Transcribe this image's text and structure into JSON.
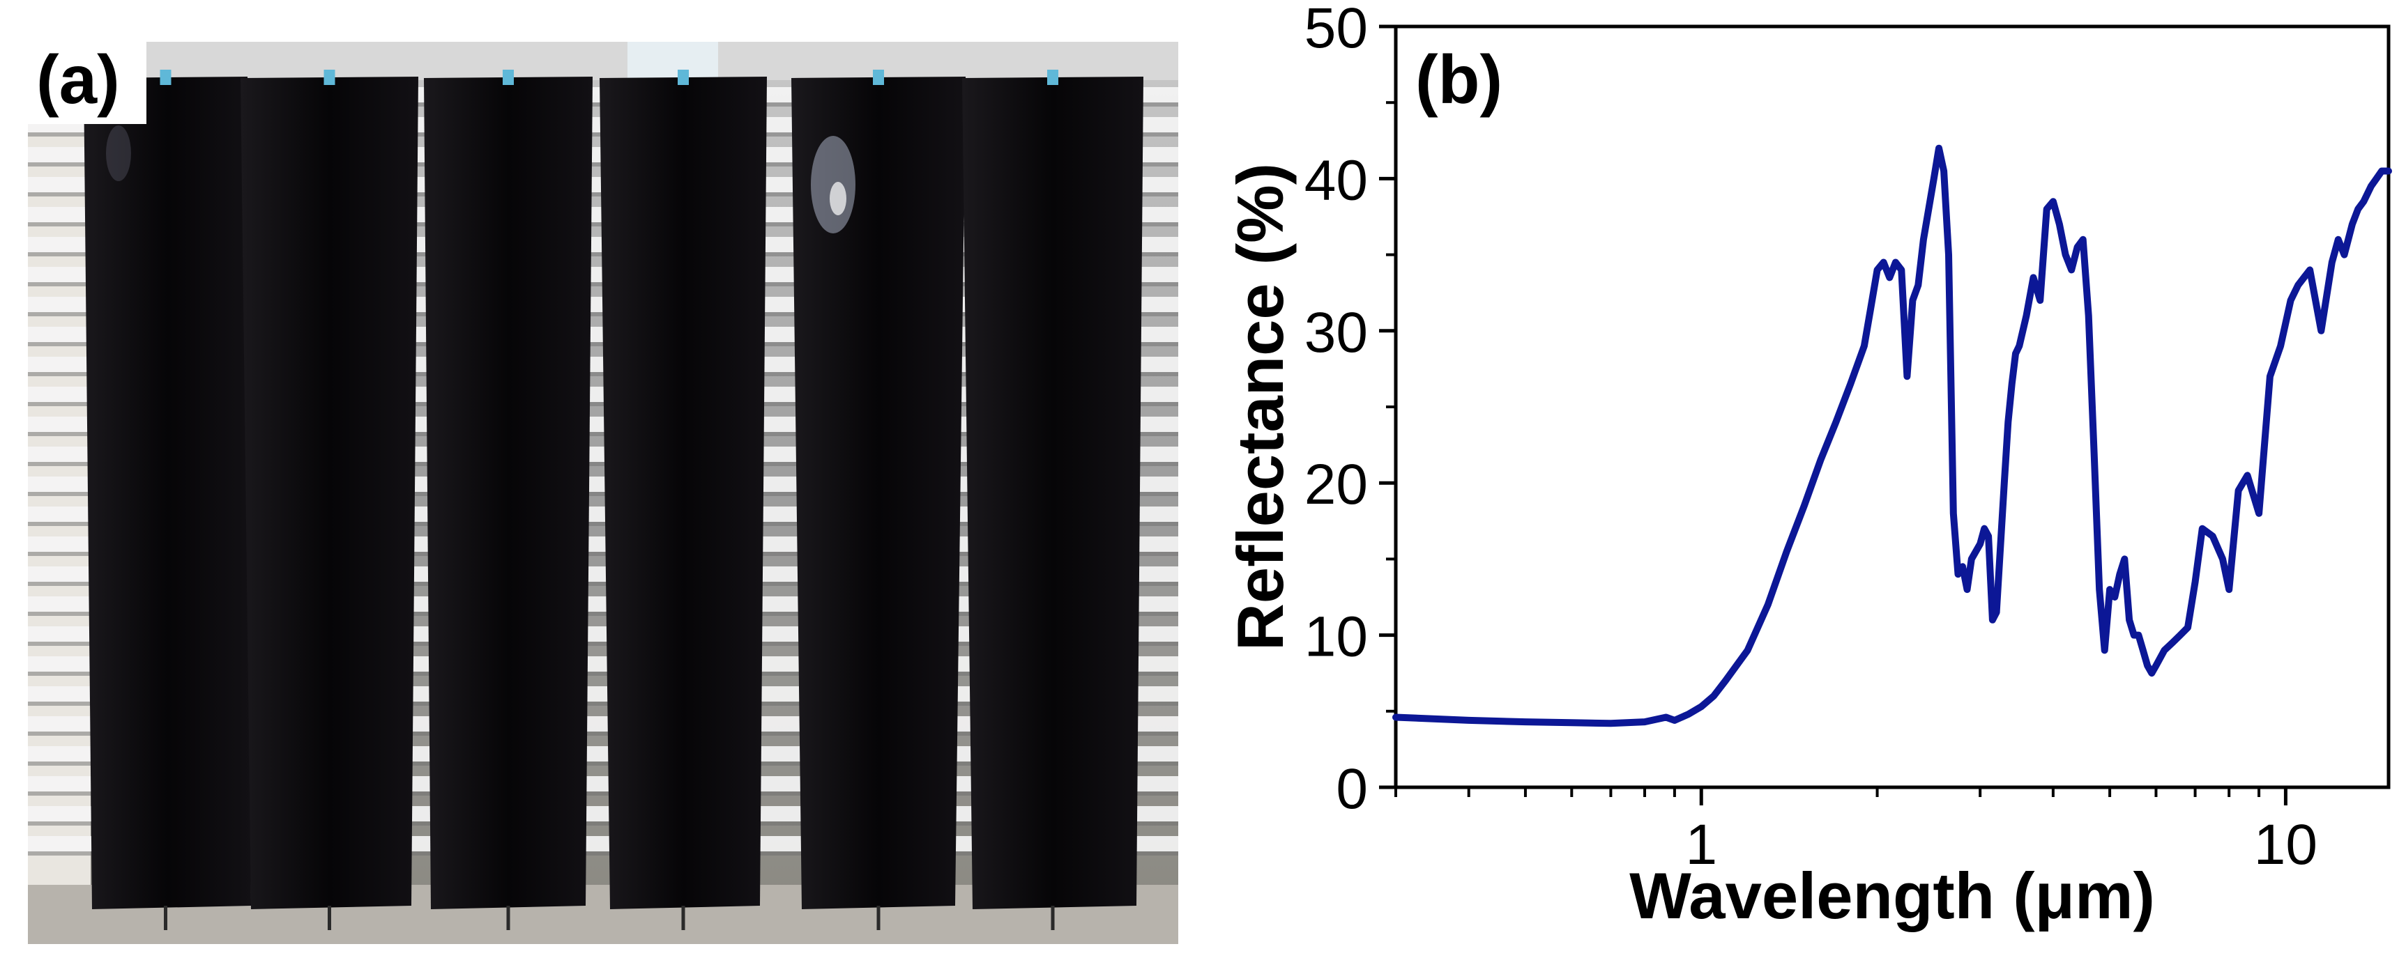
{
  "panel_a": {
    "label": "(a)",
    "colors": {
      "sheet": "#080608",
      "wall": "#9a9a9a",
      "slat_light": "#f4f4f4",
      "clip": "#5fb8d8"
    }
  },
  "panel_b": {
    "label": "(b)"
  },
  "chart_data": {
    "type": "line",
    "title": "",
    "xlabel": "Wavelength (μm)",
    "ylabel": "Reflectance (%)",
    "x_scale": "log",
    "xlim": [
      0.3,
      15
    ],
    "ylim": [
      0,
      50
    ],
    "x_ticks": [
      1,
      10
    ],
    "x_tick_labels": [
      "1",
      "10"
    ],
    "y_ticks": [
      0,
      10,
      20,
      30,
      40,
      50
    ],
    "y_tick_labels": [
      "0",
      "10",
      "20",
      "30",
      "40",
      "50"
    ],
    "grid": false,
    "legend": "none",
    "line_color": "#0c1796",
    "series": [
      {
        "x": [
          0.3,
          0.4,
          0.5,
          0.6,
          0.7,
          0.8,
          0.87,
          0.9,
          0.95,
          1.0,
          1.05,
          1.1,
          1.2,
          1.3,
          1.4,
          1.5,
          1.6,
          1.7,
          1.8,
          1.9,
          1.95,
          2.0,
          2.05,
          2.1,
          2.15,
          2.2,
          2.25,
          2.3,
          2.35,
          2.4,
          2.5,
          2.55,
          2.6,
          2.65,
          2.7,
          2.75,
          2.8,
          2.85,
          2.9,
          3.0,
          3.05,
          3.1,
          3.15,
          3.2,
          3.3,
          3.35,
          3.4,
          3.45,
          3.5,
          3.6,
          3.7,
          3.8,
          3.9,
          4.0,
          4.1,
          4.2,
          4.3,
          4.4,
          4.5,
          4.6,
          4.7,
          4.8,
          4.9,
          5.0,
          5.1,
          5.2,
          5.3,
          5.4,
          5.5,
          5.6,
          5.7,
          5.8,
          5.9,
          6.0,
          6.2,
          6.4,
          6.6,
          6.8,
          7.0,
          7.2,
          7.5,
          7.8,
          8.0,
          8.3,
          8.6,
          9.0,
          9.4,
          9.8,
          10.2,
          10.5,
          11.0,
          11.5,
          12.0,
          12.3,
          12.6,
          13.0,
          13.3,
          13.6,
          14.0,
          14.3,
          14.6,
          15.0
        ],
        "y": [
          4.6,
          4.4,
          4.3,
          4.25,
          4.2,
          4.3,
          4.6,
          4.4,
          4.8,
          5.3,
          6.0,
          7.0,
          9.0,
          12.0,
          15.5,
          18.5,
          21.5,
          24.0,
          26.5,
          29.0,
          31.5,
          34.0,
          34.5,
          33.5,
          34.5,
          34.0,
          27.0,
          32.0,
          33.0,
          36.0,
          40.0,
          42.0,
          40.5,
          35.0,
          18.0,
          14.0,
          14.5,
          13.0,
          15.0,
          16.0,
          17.0,
          16.5,
          11.0,
          11.5,
          20.0,
          24.0,
          26.5,
          28.5,
          29.0,
          31.0,
          33.5,
          32.0,
          38.0,
          38.5,
          37.0,
          35.0,
          34.0,
          35.5,
          36.0,
          31.0,
          22.0,
          13.0,
          9.0,
          13.0,
          12.5,
          14.0,
          15.0,
          11.0,
          10.0,
          10.0,
          9.0,
          8.0,
          7.5,
          8.0,
          9.0,
          9.5,
          10.0,
          10.5,
          13.5,
          17.0,
          16.5,
          15.0,
          13.0,
          19.5,
          20.5,
          18.0,
          27.0,
          29.0,
          32.0,
          33.0,
          34.0,
          30.0,
          34.5,
          36.0,
          35.0,
          37.0,
          38.0,
          38.5,
          39.5,
          40.0,
          40.5,
          40.5
        ]
      }
    ]
  }
}
